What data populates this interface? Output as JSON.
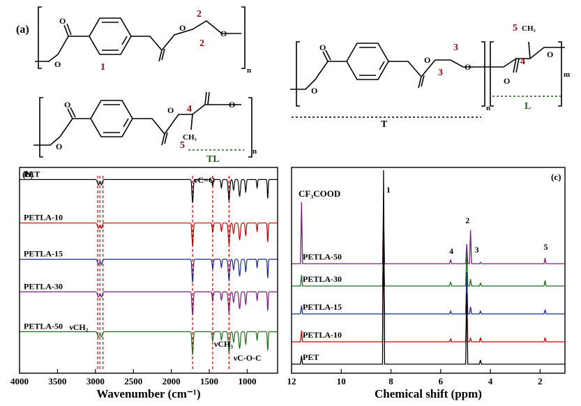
{
  "panel_a": {
    "label": "(a)",
    "structures": [
      {
        "atoms": [
          "O",
          "O",
          "O",
          "O"
        ],
        "numbers": [
          "1",
          "2",
          "2"
        ],
        "subscript": "n"
      },
      {
        "atoms": [
          "O",
          "O",
          "O",
          "O"
        ],
        "numbers": [
          "4",
          "5"
        ],
        "methyl": "CH₃",
        "subscript": "n",
        "segment": "TL"
      },
      {
        "atoms": [
          "O",
          "O",
          "O",
          "O",
          "O",
          "O"
        ],
        "numbers": [
          "3",
          "3",
          "4",
          "5"
        ],
        "methyl": "CH₃",
        "subscripts": [
          "n",
          "m"
        ],
        "segments": [
          "T",
          "L"
        ]
      }
    ]
  },
  "chart_data": [
    {
      "panel": "(b)",
      "type": "line",
      "xlabel": "Wavenumber (cm⁻¹)",
      "xlim": [
        4000,
        600
      ],
      "x_ticks": [
        "4000",
        "3500",
        "3000",
        "2500",
        "2000",
        "1500",
        "1000"
      ],
      "x_tick_values": [
        4000,
        3500,
        3000,
        2500,
        2000,
        1500,
        1000
      ],
      "series": [
        {
          "name": "PET",
          "color": "#000000",
          "baseline": 1.0
        },
        {
          "name": "PETLA-10",
          "color": "#c00000",
          "baseline": 0.76
        },
        {
          "name": "PETLA-15",
          "color": "#1a2b8c",
          "baseline": 0.56
        },
        {
          "name": "PETLA-30",
          "color": "#7a1a7a",
          "baseline": 0.38
        },
        {
          "name": "PETLA-50",
          "color": "#1e6b1e",
          "baseline": 0.16
        }
      ],
      "bands_cm1": [
        2960,
        2920,
        1720,
        1455,
        1340,
        1240,
        1180,
        1100,
        1020,
        870,
        730
      ],
      "annotations": [
        {
          "text": "νC=O",
          "x": 1720
        },
        {
          "text": "νCH₂",
          "x": 2940
        },
        {
          "text": "νCH₃",
          "x": 1455
        },
        {
          "text": "νC-O-C",
          "x": 1200
        }
      ],
      "dashed_guides_cm1": [
        2970,
        2940,
        2900,
        1720,
        1455,
        1240
      ]
    },
    {
      "panel": "(c)",
      "type": "line",
      "xlabel": "Chemical shift (ppm)",
      "xlim": [
        12,
        1
      ],
      "x_ticks": [
        "12",
        "10",
        "8",
        "6",
        "4",
        "2"
      ],
      "x_tick_values": [
        12,
        10,
        8,
        6,
        4,
        2
      ],
      "series": [
        {
          "name": "PETLA-50",
          "color": "#7a1a7a"
        },
        {
          "name": "PETLA-30",
          "color": "#1e6b1e"
        },
        {
          "name": "PETLA-15",
          "color": "#1a2b8c"
        },
        {
          "name": "PETLA-10",
          "color": "#c00000"
        },
        {
          "name": "PET",
          "color": "#000000"
        }
      ],
      "solvent_label": "CF₃COOD",
      "peak_labels": [
        {
          "text": "1",
          "ppm": 8.3
        },
        {
          "text": "2",
          "ppm": 4.95
        },
        {
          "text": "3",
          "ppm": 4.8
        },
        {
          "text": "4",
          "ppm": 5.6
        },
        {
          "text": "5",
          "ppm": 1.8
        }
      ],
      "peaks_ppm": {
        "solvent": 11.6,
        "aromatic": 8.3,
        "ch2": 4.95,
        "ch2b": 4.8,
        "ch": 5.6,
        "ch3": 1.8,
        "minor": 4.4
      }
    }
  ]
}
